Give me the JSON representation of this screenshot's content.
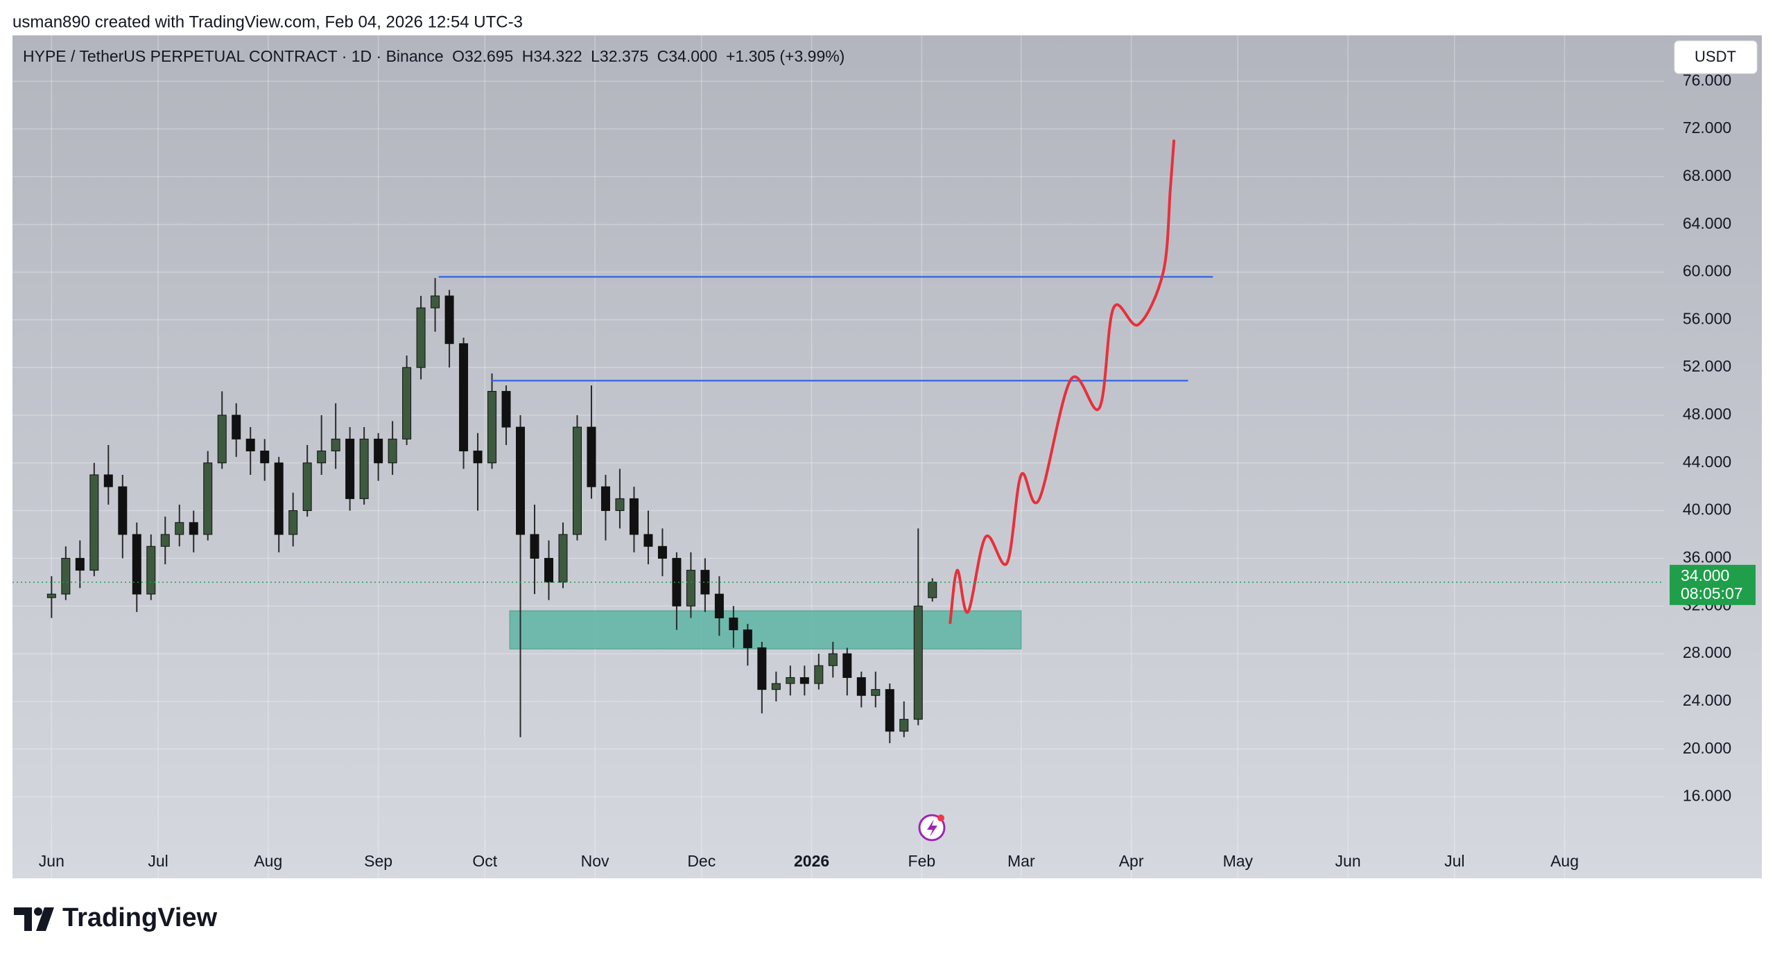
{
  "header": {
    "credit": "usman890 created with TradingView.com, Feb 04, 2026 12:54 UTC-3"
  },
  "legend": {
    "symbol": "HYPE / TetherUS PERPETUAL CONTRACT · 1D · Binance",
    "open": "O32.695",
    "high": "H34.322",
    "low": "L32.375",
    "close": "C34.000",
    "change": "+1.305 (+3.99%)"
  },
  "currency_button": "USDT",
  "logo": "TradingView",
  "chart_data": {
    "type": "candlestick",
    "x": [
      "2025-06-01",
      "2025-06-05",
      "2025-06-09",
      "2025-06-13",
      "2025-06-17",
      "2025-06-21",
      "2025-06-25",
      "2025-06-29",
      "2025-07-03",
      "2025-07-07",
      "2025-07-11",
      "2025-07-15",
      "2025-07-19",
      "2025-07-23",
      "2025-07-27",
      "2025-07-31",
      "2025-08-04",
      "2025-08-08",
      "2025-08-12",
      "2025-08-16",
      "2025-08-20",
      "2025-08-24",
      "2025-08-28",
      "2025-09-01",
      "2025-09-05",
      "2025-09-09",
      "2025-09-13",
      "2025-09-17",
      "2025-09-21",
      "2025-09-25",
      "2025-09-29",
      "2025-10-03",
      "2025-10-07",
      "2025-10-11",
      "2025-10-15",
      "2025-10-19",
      "2025-10-23",
      "2025-10-27",
      "2025-10-31",
      "2025-11-04",
      "2025-11-08",
      "2025-11-12",
      "2025-11-16",
      "2025-11-20",
      "2025-11-24",
      "2025-11-28",
      "2025-12-02",
      "2025-12-06",
      "2025-12-10",
      "2025-12-14",
      "2025-12-18",
      "2025-12-22",
      "2025-12-26",
      "2025-12-30",
      "2026-01-03",
      "2026-01-07",
      "2026-01-11",
      "2026-01-15",
      "2026-01-19",
      "2026-01-23",
      "2026-01-27",
      "2026-01-31",
      "2026-02-04"
    ],
    "open": [
      32.7,
      33,
      36,
      35,
      43,
      42,
      38,
      33,
      37,
      38,
      39,
      38,
      44,
      48,
      46,
      45,
      44,
      38,
      40,
      44,
      45,
      46,
      41,
      46,
      44,
      46,
      52,
      57,
      58,
      54,
      45,
      44,
      50,
      47,
      38,
      36,
      34,
      38,
      47,
      42,
      40,
      41,
      38,
      37,
      36,
      32,
      35,
      33,
      31,
      30,
      28.5,
      25,
      25.5,
      26,
      25.5,
      27,
      28,
      26,
      24.5,
      25,
      21.5,
      22.5,
      32.695
    ],
    "high": [
      34.5,
      37,
      37.5,
      44,
      45.5,
      43,
      39,
      38,
      39.5,
      40.5,
      40,
      45,
      50,
      49,
      47,
      46,
      44.5,
      41.5,
      45.5,
      48,
      49,
      47,
      47,
      46.5,
      47.5,
      53,
      58,
      59.5,
      58.5,
      54.5,
      46.5,
      51.5,
      50.5,
      48,
      40.5,
      37.5,
      39,
      48,
      50.5,
      43,
      43.5,
      42,
      40,
      38.5,
      36.5,
      36.5,
      36,
      34.5,
      32,
      30.5,
      29,
      26.5,
      27,
      27,
      28,
      29,
      28.5,
      26.5,
      26.5,
      25.5,
      24,
      38.5,
      34.322
    ],
    "low": [
      31,
      32.5,
      33.5,
      34.5,
      40.5,
      36,
      31.5,
      32.5,
      35.5,
      37,
      36.5,
      37.5,
      43.5,
      44.5,
      43,
      42.5,
      36.5,
      37,
      39.5,
      43,
      43.5,
      40,
      40.5,
      42.5,
      43,
      45.5,
      51,
      55,
      52,
      43.5,
      40,
      43.5,
      45.5,
      21,
      33,
      32.5,
      33.5,
      37.5,
      41,
      37.5,
      38.5,
      36.5,
      35.5,
      34.5,
      30,
      31,
      31.5,
      29.5,
      28.5,
      27,
      23,
      24,
      24.5,
      24.5,
      25,
      26,
      24.5,
      23.5,
      23.5,
      20.5,
      21,
      22,
      32.375
    ],
    "close": [
      33,
      36,
      35,
      43,
      42,
      38,
      33,
      37,
      38,
      39,
      38,
      44,
      48,
      46,
      45,
      44,
      38,
      40,
      44,
      45,
      46,
      41,
      46,
      44,
      46,
      52,
      57,
      58,
      54,
      45,
      44,
      50,
      47,
      38,
      36,
      34,
      38,
      47,
      42,
      40,
      41,
      38,
      37,
      36,
      32,
      35,
      33,
      31,
      30,
      28.5,
      25,
      25.5,
      26,
      25.5,
      27,
      28,
      26,
      24.5,
      25,
      21.5,
      22.5,
      32,
      34
    ],
    "up_color": "#3d5a3f",
    "down_color": "#111111",
    "wick_color": "#2a2a2a",
    "xlim": [
      "2025-05-21",
      "2026-08-29"
    ],
    "xticks": [
      {
        "value": "2025-06-01",
        "label": "Jun"
      },
      {
        "value": "2025-07-01",
        "label": "Jul"
      },
      {
        "value": "2025-08-01",
        "label": "Aug"
      },
      {
        "value": "2025-09-01",
        "label": "Sep"
      },
      {
        "value": "2025-10-01",
        "label": "Oct"
      },
      {
        "value": "2025-11-01",
        "label": "Nov"
      },
      {
        "value": "2025-12-01",
        "label": "Dec"
      },
      {
        "value": "2026-01-01",
        "label": "2026"
      },
      {
        "value": "2026-02-01",
        "label": "Feb"
      },
      {
        "value": "2026-03-01",
        "label": "Mar"
      },
      {
        "value": "2026-04-01",
        "label": "Apr"
      },
      {
        "value": "2026-05-01",
        "label": "May"
      },
      {
        "value": "2026-06-01",
        "label": "Jun"
      },
      {
        "value": "2026-07-01",
        "label": "Jul"
      },
      {
        "value": "2026-08-01",
        "label": "Aug"
      }
    ],
    "ylim": [
      9.17,
      79.85
    ],
    "yticks": [
      {
        "value": 16,
        "label": "16.000"
      },
      {
        "value": 20,
        "label": "20.000"
      },
      {
        "value": 24,
        "label": "24.000"
      },
      {
        "value": 28,
        "label": "28.000"
      },
      {
        "value": 32,
        "label": "32.000"
      },
      {
        "value": 36,
        "label": "36.000"
      },
      {
        "value": 40,
        "label": "40.000"
      },
      {
        "value": 44,
        "label": "44.000"
      },
      {
        "value": 48,
        "label": "48.000"
      },
      {
        "value": 52,
        "label": "52.000"
      },
      {
        "value": 56,
        "label": "56.000"
      },
      {
        "value": 60,
        "label": "60.000"
      },
      {
        "value": 64,
        "label": "64.000"
      },
      {
        "value": 68,
        "label": "68.000"
      },
      {
        "value": 72,
        "label": "72.000"
      },
      {
        "value": 76,
        "label": "76.000"
      }
    ],
    "grid": true,
    "last_price": 34,
    "last_price_label": "34.000",
    "countdown": "08:05:07",
    "last_price_color": "#1f9f4a",
    "levels": [
      {
        "y": 59.6,
        "x": [
          "2025-09-18",
          "2026-04-24"
        ],
        "color": "#3d6ee0"
      },
      {
        "y": 50.9,
        "x": [
          "2025-10-03",
          "2026-04-17"
        ],
        "color": "#3d6ee0"
      }
    ],
    "zone": {
      "top": 31.6,
      "bottom": 28.4,
      "x": [
        "2025-10-08",
        "2026-03-01"
      ],
      "color": "#5db5a4"
    },
    "projection": {
      "color": "#e8303a",
      "x": [
        "2026-02-09",
        "2026-02-11",
        "2026-02-14",
        "2026-02-19",
        "2026-02-25",
        "2026-03-01",
        "2026-03-06",
        "2026-03-15",
        "2026-03-23",
        "2026-03-27",
        "2026-04-03",
        "2026-04-10",
        "2026-04-12",
        "2026-04-13"
      ],
      "values": [
        30.6,
        35,
        31.5,
        37.8,
        35.6,
        43,
        40.9,
        51,
        48.6,
        57,
        55.6,
        60,
        67,
        71
      ]
    }
  }
}
